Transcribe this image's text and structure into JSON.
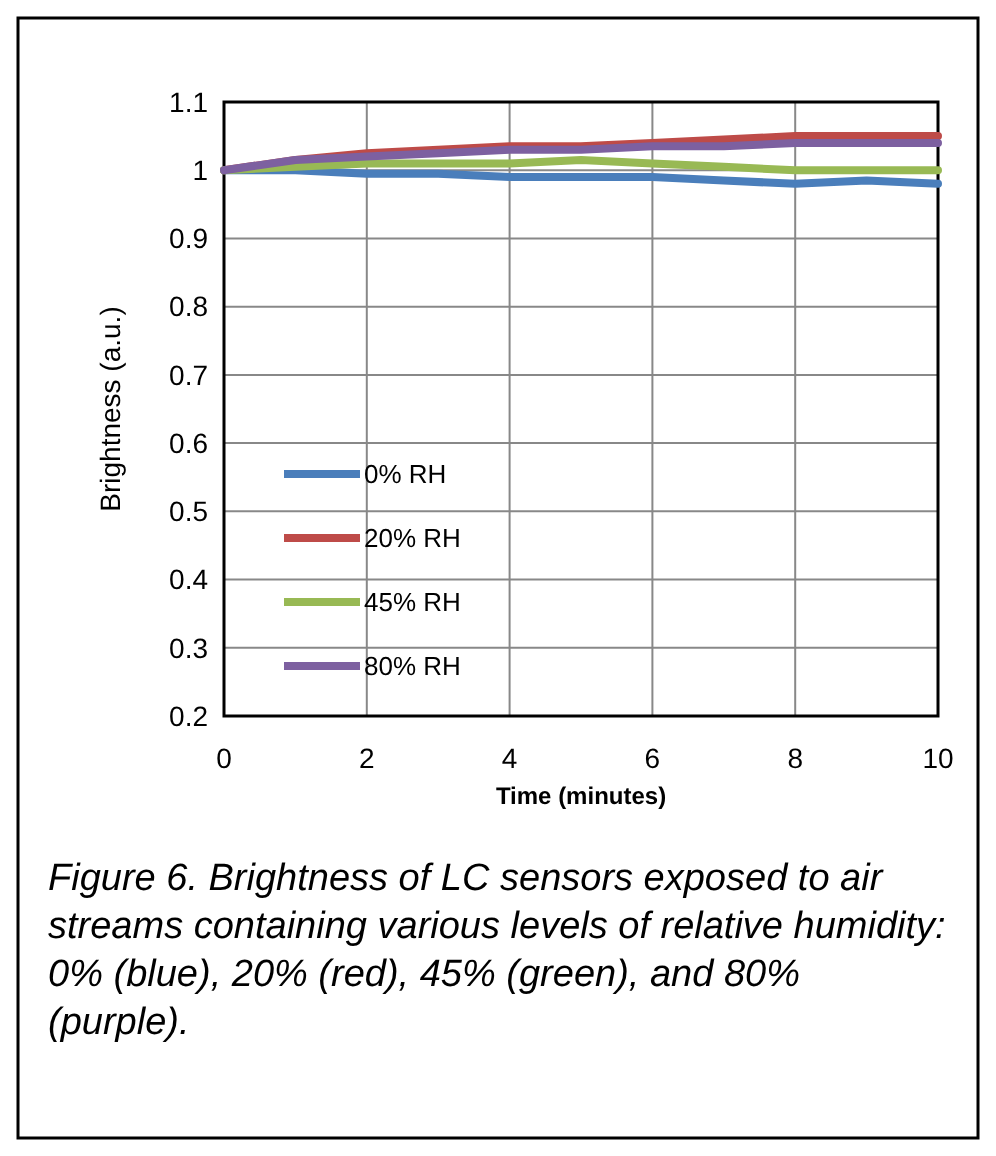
{
  "chart_data": {
    "type": "line",
    "xlabel": "Time (minutes)",
    "ylabel": "Brightness (a.u.)",
    "x": [
      0,
      1,
      2,
      3,
      4,
      5,
      6,
      7,
      8,
      9,
      10
    ],
    "xlim": [
      0,
      10
    ],
    "xticks": [
      0,
      2,
      4,
      6,
      8,
      10
    ],
    "ylim": [
      0.2,
      1.1
    ],
    "yticks": [
      {
        "value": 0.2,
        "label": "0.2"
      },
      {
        "value": 0.3,
        "label": "0.3"
      },
      {
        "value": 0.4,
        "label": "0.4"
      },
      {
        "value": 0.5,
        "label": "0.5"
      },
      {
        "value": 0.6,
        "label": "0.6"
      },
      {
        "value": 0.7,
        "label": "0.7"
      },
      {
        "value": 0.8,
        "label": "0.8"
      },
      {
        "value": 0.9,
        "label": "0.9"
      },
      1,
      {
        "value": 1.1,
        "label": "1.1"
      }
    ],
    "grid": true,
    "legend": "left",
    "marker": "none",
    "line_style": "solid",
    "series": [
      {
        "name": "0% RH",
        "color": "#4a7ebb",
        "values": [
          1.0,
          1.0,
          0.995,
          0.995,
          0.99,
          0.99,
          0.99,
          0.985,
          0.98,
          0.985,
          0.98
        ]
      },
      {
        "name": "20% RH",
        "color": "#be4b48",
        "values": [
          1.0,
          1.015,
          1.025,
          1.03,
          1.035,
          1.035,
          1.04,
          1.045,
          1.05,
          1.05,
          1.05
        ]
      },
      {
        "name": "45% RH",
        "color": "#98b954",
        "values": [
          1.0,
          1.005,
          1.01,
          1.01,
          1.01,
          1.015,
          1.01,
          1.005,
          1.0,
          1.0,
          1.0
        ]
      },
      {
        "name": "80% RH",
        "color": "#7d60a0",
        "values": [
          1.0,
          1.015,
          1.02,
          1.025,
          1.03,
          1.03,
          1.035,
          1.035,
          1.04,
          1.04,
          1.04
        ]
      }
    ],
    "annotations": [
      "Figure 6. Brightness of LC sensors exposed to air streams containing various levels of relative humidity: 0% (blue), 20% (red), 45% (green), and 80% (purple)."
    ]
  }
}
